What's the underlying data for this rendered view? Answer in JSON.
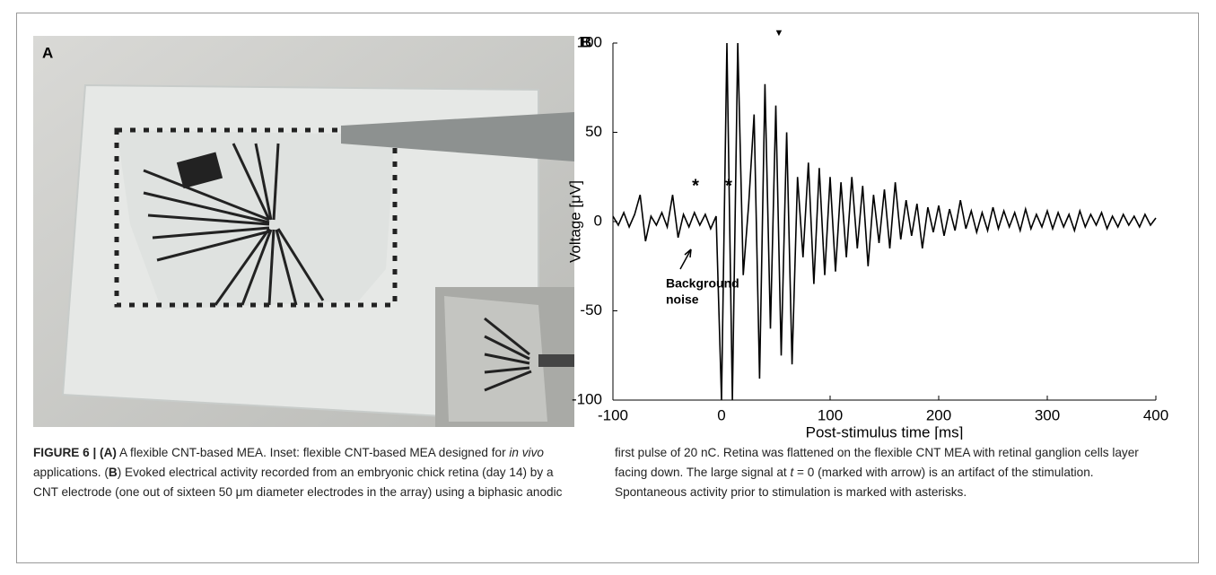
{
  "panels": {
    "a": {
      "label": "A"
    },
    "b": {
      "label": "B"
    }
  },
  "chart_data": {
    "type": "line",
    "ylabel": "Voltage [μV]",
    "xlabel": "Post-stimulus time [ms]",
    "color": "#000000",
    "xlim": [
      -100,
      400
    ],
    "xticks": [
      -100,
      0,
      100,
      200,
      300,
      400
    ],
    "ylim": [
      -100,
      100
    ],
    "yticks": [
      -100,
      -50,
      0,
      50,
      100
    ],
    "annotations": {
      "asterisk1": "*",
      "asterisk2": "*",
      "marker": "▼",
      "noise": [
        "Background",
        "noise"
      ]
    },
    "x": [
      -100,
      -95,
      -90,
      -85,
      -80,
      -75,
      -70,
      -65,
      -60,
      -55,
      -50,
      -45,
      -40,
      -35,
      -30,
      -25,
      -20,
      -15,
      -10,
      -5,
      0,
      5,
      10,
      15,
      20,
      25,
      30,
      35,
      40,
      45,
      50,
      55,
      60,
      65,
      70,
      75,
      80,
      85,
      90,
      95,
      100,
      105,
      110,
      115,
      120,
      125,
      130,
      135,
      140,
      145,
      150,
      155,
      160,
      165,
      170,
      175,
      180,
      185,
      190,
      195,
      200,
      205,
      210,
      215,
      220,
      225,
      230,
      235,
      240,
      245,
      250,
      255,
      260,
      265,
      270,
      275,
      280,
      285,
      290,
      295,
      300,
      305,
      310,
      315,
      320,
      325,
      330,
      335,
      340,
      345,
      350,
      355,
      360,
      365,
      370,
      375,
      380,
      385,
      390,
      395,
      400
    ],
    "values": [
      3,
      -2,
      5,
      -3,
      4,
      15,
      -11,
      3,
      -2,
      5,
      -3,
      15,
      -9,
      4,
      -3,
      5,
      -2,
      4,
      -4,
      3,
      -100,
      100,
      -100,
      100,
      -30,
      10,
      60,
      -88,
      77,
      -60,
      65,
      -75,
      50,
      -80,
      25,
      -20,
      33,
      -35,
      30,
      -30,
      25,
      -28,
      22,
      -20,
      25,
      -15,
      20,
      -25,
      15,
      -12,
      18,
      -15,
      22,
      -10,
      12,
      -8,
      10,
      -15,
      8,
      -6,
      9,
      -8,
      7,
      -5,
      12,
      -4,
      6,
      -6,
      5,
      -5,
      8,
      -4,
      6,
      -3,
      5,
      -5,
      7,
      -4,
      4,
      -3,
      6,
      -4,
      5,
      -3,
      4,
      -5,
      6,
      -3,
      4,
      -2,
      5,
      -4,
      3,
      -3,
      4,
      -2,
      3,
      -3,
      4,
      -2,
      2
    ]
  },
  "caption": [
    "FIGURE 6 | (A)",
    " A flexible CNT-based MEA. Inset: flexible CNT-based MEA designed for ",
    "in vivo",
    " applications. (",
    "B",
    ") Evoked electrical activity recorded from an embryonic chick retina (day 14) by a CNT electrode (one out of sixteen 50 μm diameter electrodes in the array) using a biphasic anodic first pulse of 20 nC. Retina was flattened on the flexible CNT MEA with retinal ganglion cells layer facing down. The large signal at ",
    "t",
    " = 0 (marked with arrow) is an artifact of the stimulation. Spontaneous activity prior to stimulation is marked with asterisks."
  ]
}
